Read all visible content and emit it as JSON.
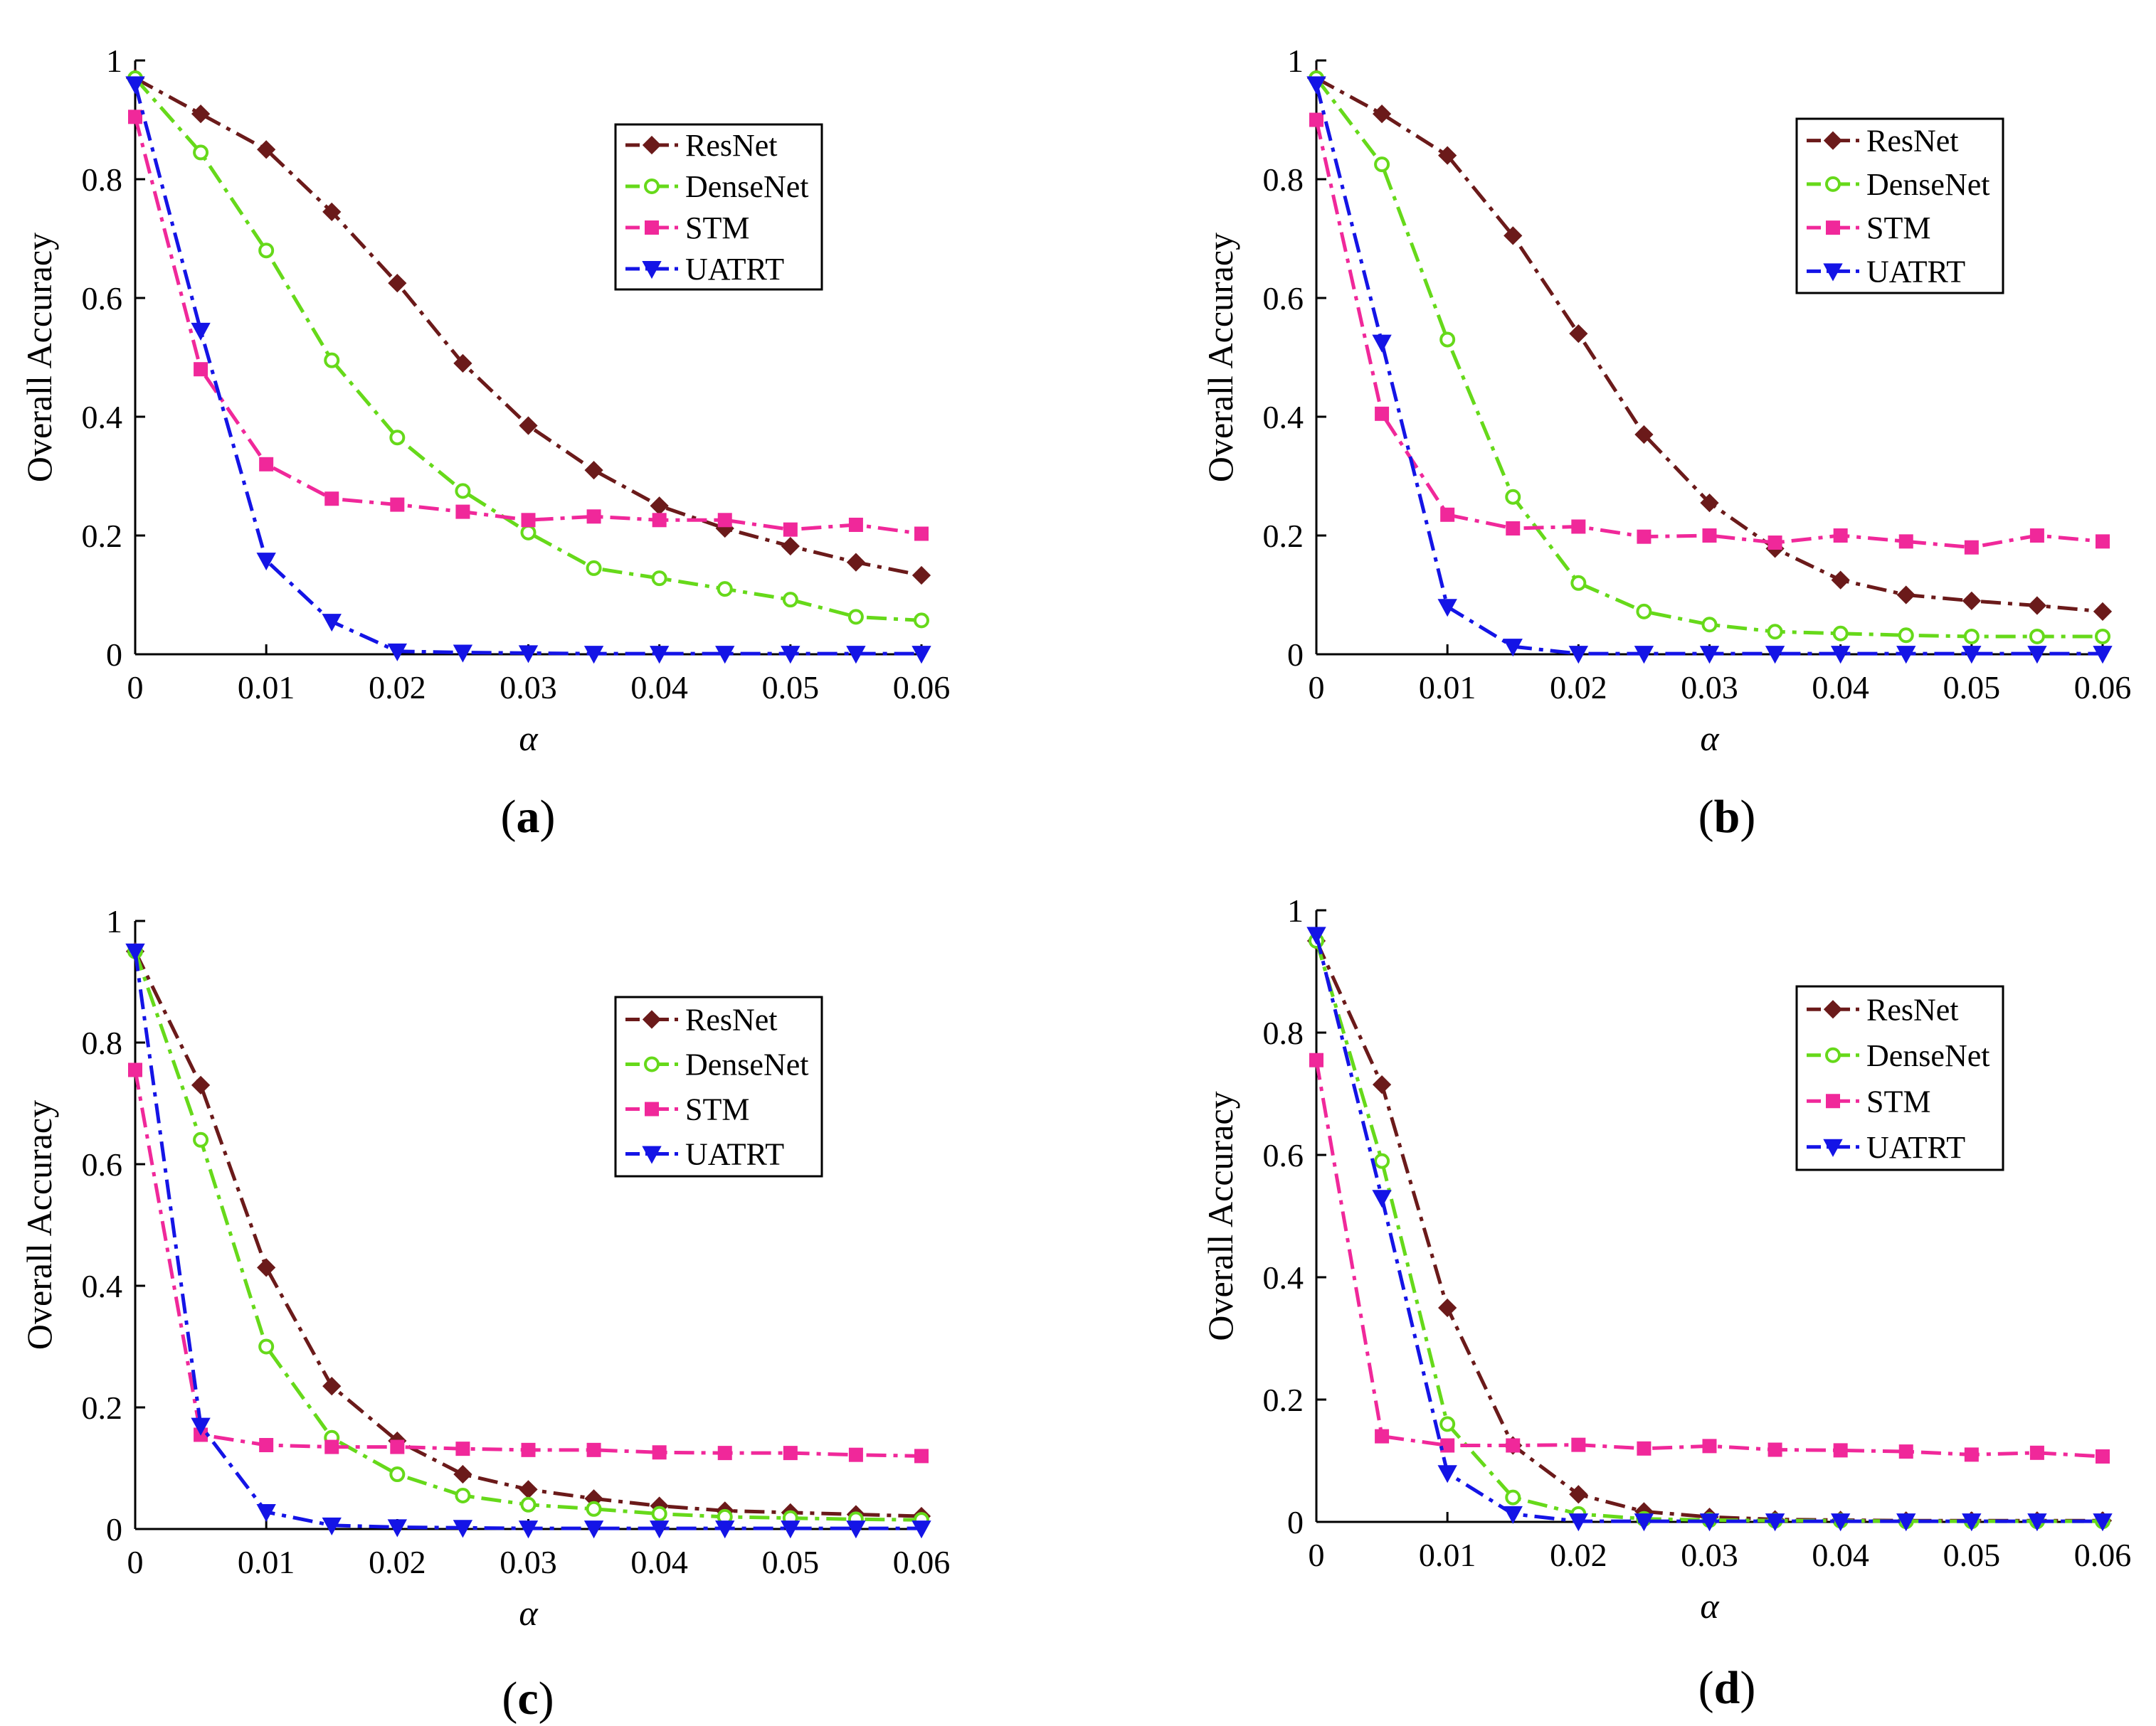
{
  "figure": {
    "ylabel": "Overall Accuracy",
    "xlabel": "α",
    "x_tick_labels": [
      "0",
      "0.01",
      "0.02",
      "0.03",
      "0.04",
      "0.05",
      "0.06"
    ],
    "y_tick_labels": [
      "0",
      "0.2",
      "0.4",
      "0.6",
      "0.8",
      "1"
    ]
  },
  "series_style": {
    "ResNet": {
      "color": "#6b1a1a",
      "marker": "diamond",
      "dash": "28,10,6,10"
    },
    "DenseNet": {
      "color": "#66d91a",
      "marker": "circle",
      "dash": "28,10,6,10"
    },
    "STM": {
      "color": "#f0289a",
      "marker": "square",
      "dash": "28,10,6,10"
    },
    "UATRT": {
      "color": "#1414e6",
      "marker": "triangle-down",
      "dash": "28,10,6,10"
    }
  },
  "chart_data": [
    {
      "type": "line",
      "panel": "a",
      "caption": "a",
      "xlabel": "α",
      "ylabel": "Overall Accuracy",
      "xlim": [
        0,
        0.06
      ],
      "ylim": [
        0,
        1
      ],
      "x": [
        0,
        0.005,
        0.01,
        0.015,
        0.02,
        0.025,
        0.03,
        0.035,
        0.04,
        0.045,
        0.05,
        0.055,
        0.06
      ],
      "legend": [
        "ResNet",
        "DenseNet",
        "STM",
        "UATRT"
      ],
      "series": [
        {
          "name": "ResNet",
          "values": [
            0.97,
            0.91,
            0.85,
            0.745,
            0.625,
            0.49,
            0.385,
            0.31,
            0.25,
            0.212,
            0.182,
            0.155,
            0.133
          ]
        },
        {
          "name": "DenseNet",
          "values": [
            0.97,
            0.845,
            0.68,
            0.495,
            0.365,
            0.275,
            0.205,
            0.145,
            0.128,
            0.11,
            0.092,
            0.063,
            0.057
          ]
        },
        {
          "name": "STM",
          "values": [
            0.905,
            0.48,
            0.32,
            0.262,
            0.252,
            0.24,
            0.226,
            0.232,
            0.226,
            0.226,
            0.21,
            0.218,
            0.203
          ]
        },
        {
          "name": "UATRT",
          "values": [
            0.96,
            0.545,
            0.158,
            0.055,
            0.005,
            0.003,
            0.002,
            0.001,
            0.001,
            0.001,
            0.001,
            0.001,
            0.001
          ]
        }
      ]
    },
    {
      "type": "line",
      "panel": "b",
      "caption": "b",
      "xlabel": "α",
      "ylabel": "Overall Accuracy",
      "xlim": [
        0,
        0.06
      ],
      "ylim": [
        0,
        1
      ],
      "x": [
        0,
        0.005,
        0.01,
        0.015,
        0.02,
        0.025,
        0.03,
        0.035,
        0.04,
        0.045,
        0.05,
        0.055,
        0.06
      ],
      "legend": [
        "ResNet",
        "DenseNet",
        "STM",
        "UATRT"
      ],
      "series": [
        {
          "name": "ResNet",
          "values": [
            0.97,
            0.91,
            0.84,
            0.705,
            0.54,
            0.37,
            0.255,
            0.178,
            0.125,
            0.1,
            0.09,
            0.082,
            0.072
          ]
        },
        {
          "name": "DenseNet",
          "values": [
            0.97,
            0.825,
            0.53,
            0.265,
            0.12,
            0.072,
            0.05,
            0.038,
            0.035,
            0.032,
            0.03,
            0.03,
            0.03
          ]
        },
        {
          "name": "STM",
          "values": [
            0.9,
            0.405,
            0.235,
            0.212,
            0.215,
            0.198,
            0.2,
            0.188,
            0.2,
            0.19,
            0.18,
            0.2,
            0.19
          ]
        },
        {
          "name": "UATRT",
          "values": [
            0.96,
            0.525,
            0.08,
            0.013,
            0.001,
            0.001,
            0.001,
            0.001,
            0.001,
            0.001,
            0.001,
            0.001,
            0.001
          ]
        }
      ]
    },
    {
      "type": "line",
      "panel": "c",
      "caption": "c",
      "xlabel": "α",
      "ylabel": "Overall Accuracy",
      "xlim": [
        0,
        0.06
      ],
      "ylim": [
        0,
        1
      ],
      "x": [
        0,
        0.005,
        0.01,
        0.015,
        0.02,
        0.025,
        0.03,
        0.035,
        0.04,
        0.045,
        0.05,
        0.055,
        0.06
      ],
      "legend": [
        "ResNet",
        "DenseNet",
        "STM",
        "UATRT"
      ],
      "series": [
        {
          "name": "ResNet",
          "values": [
            0.95,
            0.73,
            0.43,
            0.235,
            0.145,
            0.09,
            0.065,
            0.05,
            0.038,
            0.03,
            0.027,
            0.024,
            0.021
          ]
        },
        {
          "name": "DenseNet",
          "values": [
            0.95,
            0.64,
            0.3,
            0.15,
            0.09,
            0.055,
            0.04,
            0.033,
            0.025,
            0.02,
            0.018,
            0.016,
            0.015
          ]
        },
        {
          "name": "STM",
          "values": [
            0.755,
            0.155,
            0.138,
            0.135,
            0.135,
            0.132,
            0.13,
            0.13,
            0.126,
            0.125,
            0.125,
            0.122,
            0.12
          ]
        },
        {
          "name": "UATRT",
          "values": [
            0.95,
            0.17,
            0.028,
            0.006,
            0.003,
            0.002,
            0.001,
            0.001,
            0.001,
            0.001,
            0.001,
            0.001,
            0.001
          ]
        }
      ]
    },
    {
      "type": "line",
      "panel": "d",
      "caption": "d",
      "xlabel": "α",
      "ylabel": "Overall Accuracy",
      "xlim": [
        0,
        0.06
      ],
      "ylim": [
        0,
        1
      ],
      "x": [
        0,
        0.005,
        0.01,
        0.015,
        0.02,
        0.025,
        0.03,
        0.035,
        0.04,
        0.045,
        0.05,
        0.055,
        0.06
      ],
      "legend": [
        "ResNet",
        "DenseNet",
        "STM",
        "UATRT"
      ],
      "series": [
        {
          "name": "ResNet",
          "values": [
            0.95,
            0.715,
            0.35,
            0.125,
            0.045,
            0.017,
            0.008,
            0.004,
            0.003,
            0.002,
            0.002,
            0.002,
            0.002
          ]
        },
        {
          "name": "DenseNet",
          "values": [
            0.95,
            0.59,
            0.16,
            0.04,
            0.013,
            0.005,
            0.003,
            0.002,
            0.002,
            0.001,
            0.001,
            0.001,
            0.001
          ]
        },
        {
          "name": "STM",
          "values": [
            0.755,
            0.14,
            0.125,
            0.125,
            0.126,
            0.12,
            0.124,
            0.118,
            0.117,
            0.115,
            0.11,
            0.113,
            0.107
          ]
        },
        {
          "name": "UATRT",
          "values": [
            0.96,
            0.53,
            0.08,
            0.013,
            0.001,
            0.001,
            0.001,
            0.001,
            0.001,
            0.001,
            0.001,
            0.001,
            0.001
          ]
        }
      ]
    }
  ]
}
